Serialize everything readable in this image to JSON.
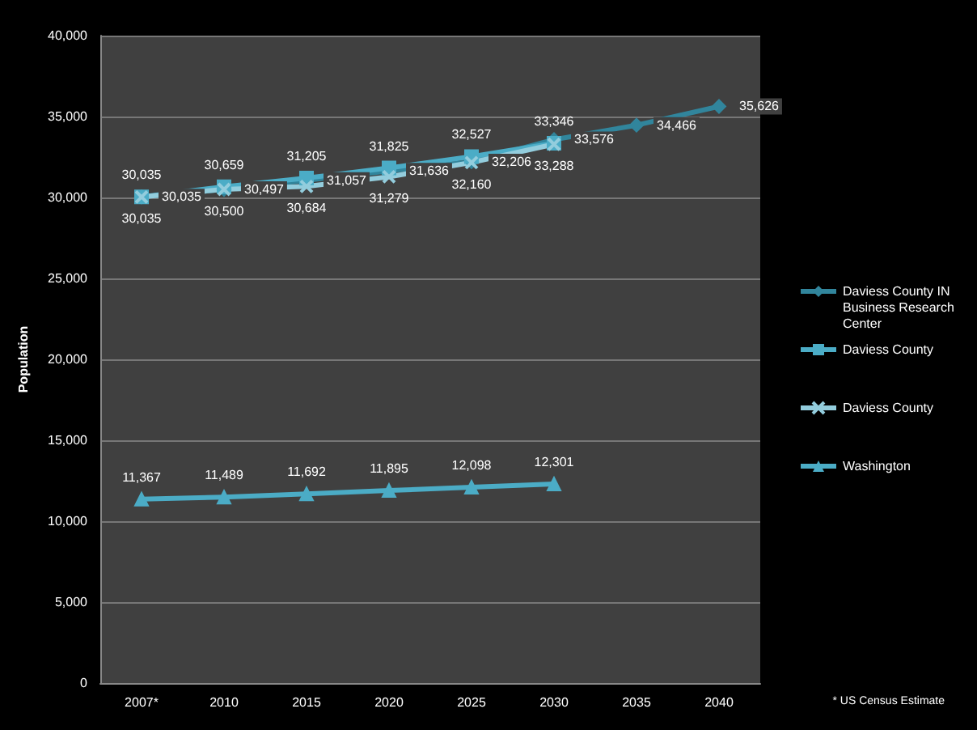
{
  "chart_data": {
    "type": "line",
    "ylabel": "Population",
    "categories": [
      "2007*",
      "2010",
      "2015",
      "2020",
      "2025",
      "2030",
      "2035",
      "2040"
    ],
    "series": [
      {
        "name": "Daviess County IN Business Research Center",
        "color": "#31859c",
        "marker": "diamond",
        "values": [
          30035,
          30497,
          31057,
          31636,
          32206,
          33576,
          34466,
          35626
        ],
        "value_labels": [
          "30,035",
          "30,497",
          "31,057",
          "31,636",
          "32,206",
          "33,576",
          "34,466",
          "35,626"
        ]
      },
      {
        "name": "Daviess County",
        "color": "#4bacc6",
        "marker": "square",
        "values": [
          30035,
          30659,
          31205,
          31825,
          32527,
          33346,
          null,
          null
        ],
        "value_labels": [
          "30,035",
          "30,659",
          "31,205",
          "31,825",
          "32,527",
          "33,346",
          null,
          null
        ]
      },
      {
        "name": "Daviess County",
        "color": "#93cddd",
        "marker": "cross",
        "values": [
          30035,
          30500,
          30684,
          31279,
          32160,
          33288,
          null,
          null
        ],
        "value_labels": [
          "30,035",
          "30,500",
          "30,684",
          "31,279",
          "32,160",
          "33,288",
          null,
          null
        ]
      },
      {
        "name": "Washington",
        "color": "#4bacc6",
        "marker": "triangle",
        "values": [
          11367,
          11489,
          11692,
          11895,
          12098,
          12301,
          null,
          null
        ],
        "value_labels": [
          "11,367",
          "11,489",
          "11,692",
          "11,895",
          "12,098",
          "12,301",
          null,
          null
        ]
      }
    ],
    "ylim": [
      0,
      40000
    ],
    "yticks": [
      {
        "value": 0,
        "label": "0"
      },
      {
        "value": 5000,
        "label": "5,000"
      },
      {
        "value": 10000,
        "label": "10,000"
      },
      {
        "value": 15000,
        "label": "15,000"
      },
      {
        "value": 20000,
        "label": "20,000"
      },
      {
        "value": 25000,
        "label": "25,000"
      },
      {
        "value": 30000,
        "label": "30,000"
      },
      {
        "value": 35000,
        "label": "35,000"
      },
      {
        "value": 40000,
        "label": "40,000"
      }
    ],
    "grid": "y",
    "legend": "right",
    "line_style": "solid",
    "annotations": [
      "* US Census Estimate"
    ]
  }
}
